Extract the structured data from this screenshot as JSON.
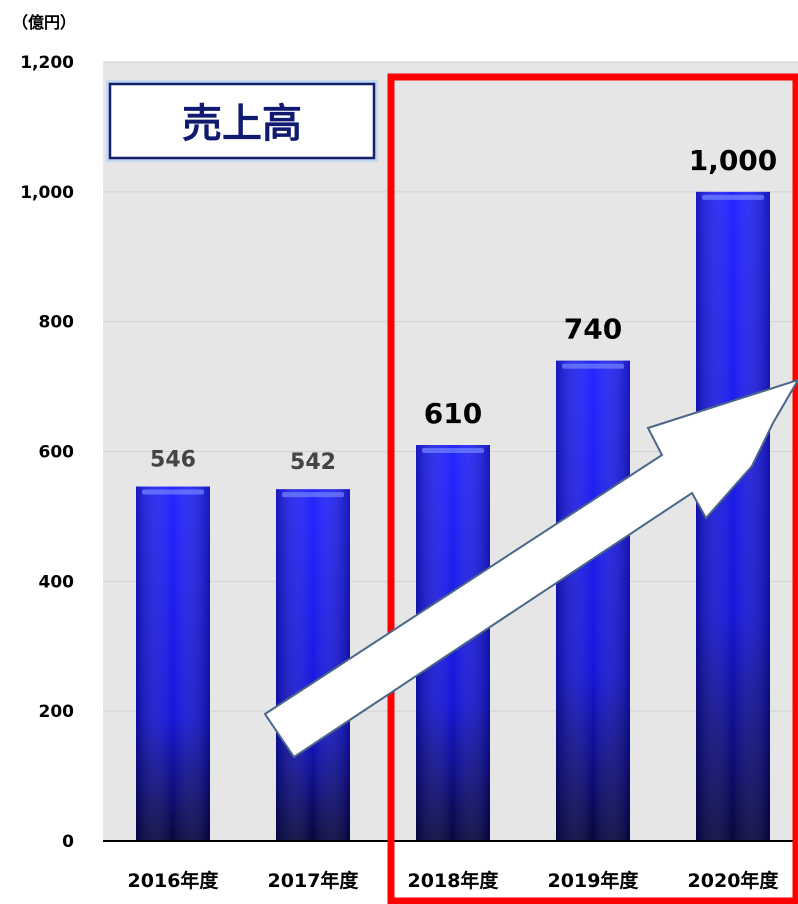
{
  "chart_data": {
    "type": "bar",
    "title": "売上高",
    "unit_label": "（億円）",
    "categories": [
      "2016年度",
      "2017年度",
      "2018年度",
      "2019年度",
      "2020年度"
    ],
    "values": [
      546,
      542,
      610,
      740,
      1000
    ],
    "value_labels": [
      "546",
      "542",
      "610",
      "740",
      "1,000"
    ],
    "yticks": [
      "0",
      "200",
      "400",
      "600",
      "800",
      "1,000",
      "1,200"
    ],
    "ylim": [
      0,
      1200
    ],
    "grid": true,
    "highlight_categories": [
      "2018年度",
      "2019年度",
      "2020年度"
    ],
    "colors": {
      "bar": "#1a1af0",
      "plot_background": "#e6e6e6",
      "highlight_box": "#ff0000",
      "arrow_fill": "#ffffff",
      "arrow_stroke": "#4a6688",
      "title_text": "#101a70"
    }
  }
}
